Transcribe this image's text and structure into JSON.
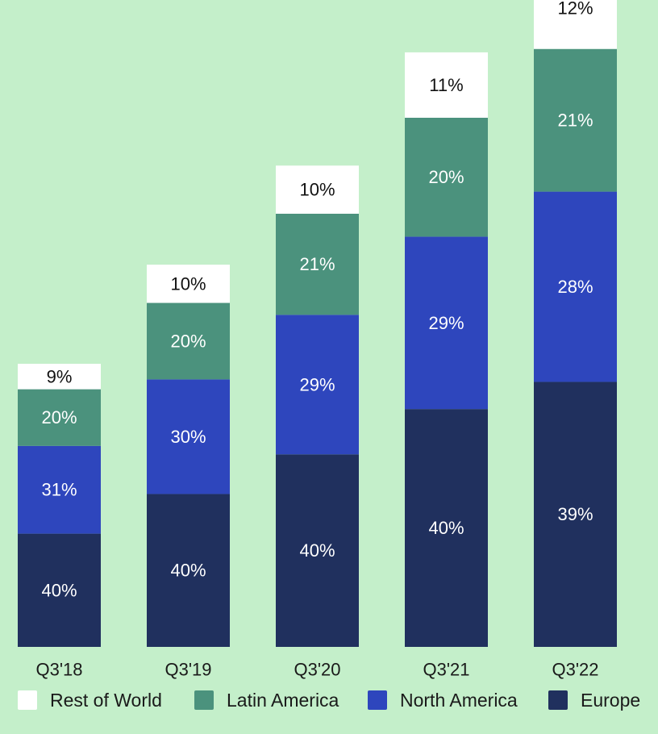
{
  "chart_data": {
    "type": "bar",
    "stacked": true,
    "unit": "%",
    "categories": [
      "Q3'18",
      "Q3'19",
      "Q3'20",
      "Q3'21",
      "Q3'22"
    ],
    "series": [
      {
        "name": "Europe",
        "color": "#20305e",
        "values": [
          40,
          40,
          40,
          40,
          39
        ]
      },
      {
        "name": "North America",
        "color": "#2e46bd",
        "values": [
          31,
          30,
          29,
          29,
          28
        ]
      },
      {
        "name": "Latin America",
        "color": "#4b927d",
        "values": [
          20,
          20,
          21,
          20,
          21
        ]
      },
      {
        "name": "Rest of World",
        "color": "#ffffff",
        "values": [
          9,
          10,
          10,
          11,
          12
        ]
      }
    ],
    "legend": {
      "placement": "bottom",
      "order": [
        "Rest of World",
        "Latin America",
        "North America",
        "Europe"
      ]
    },
    "bar_totals_relative": [
      1.0,
      1.35,
      1.7,
      2.1,
      2.4
    ],
    "title": "",
    "xlabel": "",
    "ylabel": "",
    "grid": false
  },
  "colors": {
    "background": "#c4efca",
    "label_on_dark": "#ffffff",
    "label_on_light": "#111111"
  }
}
